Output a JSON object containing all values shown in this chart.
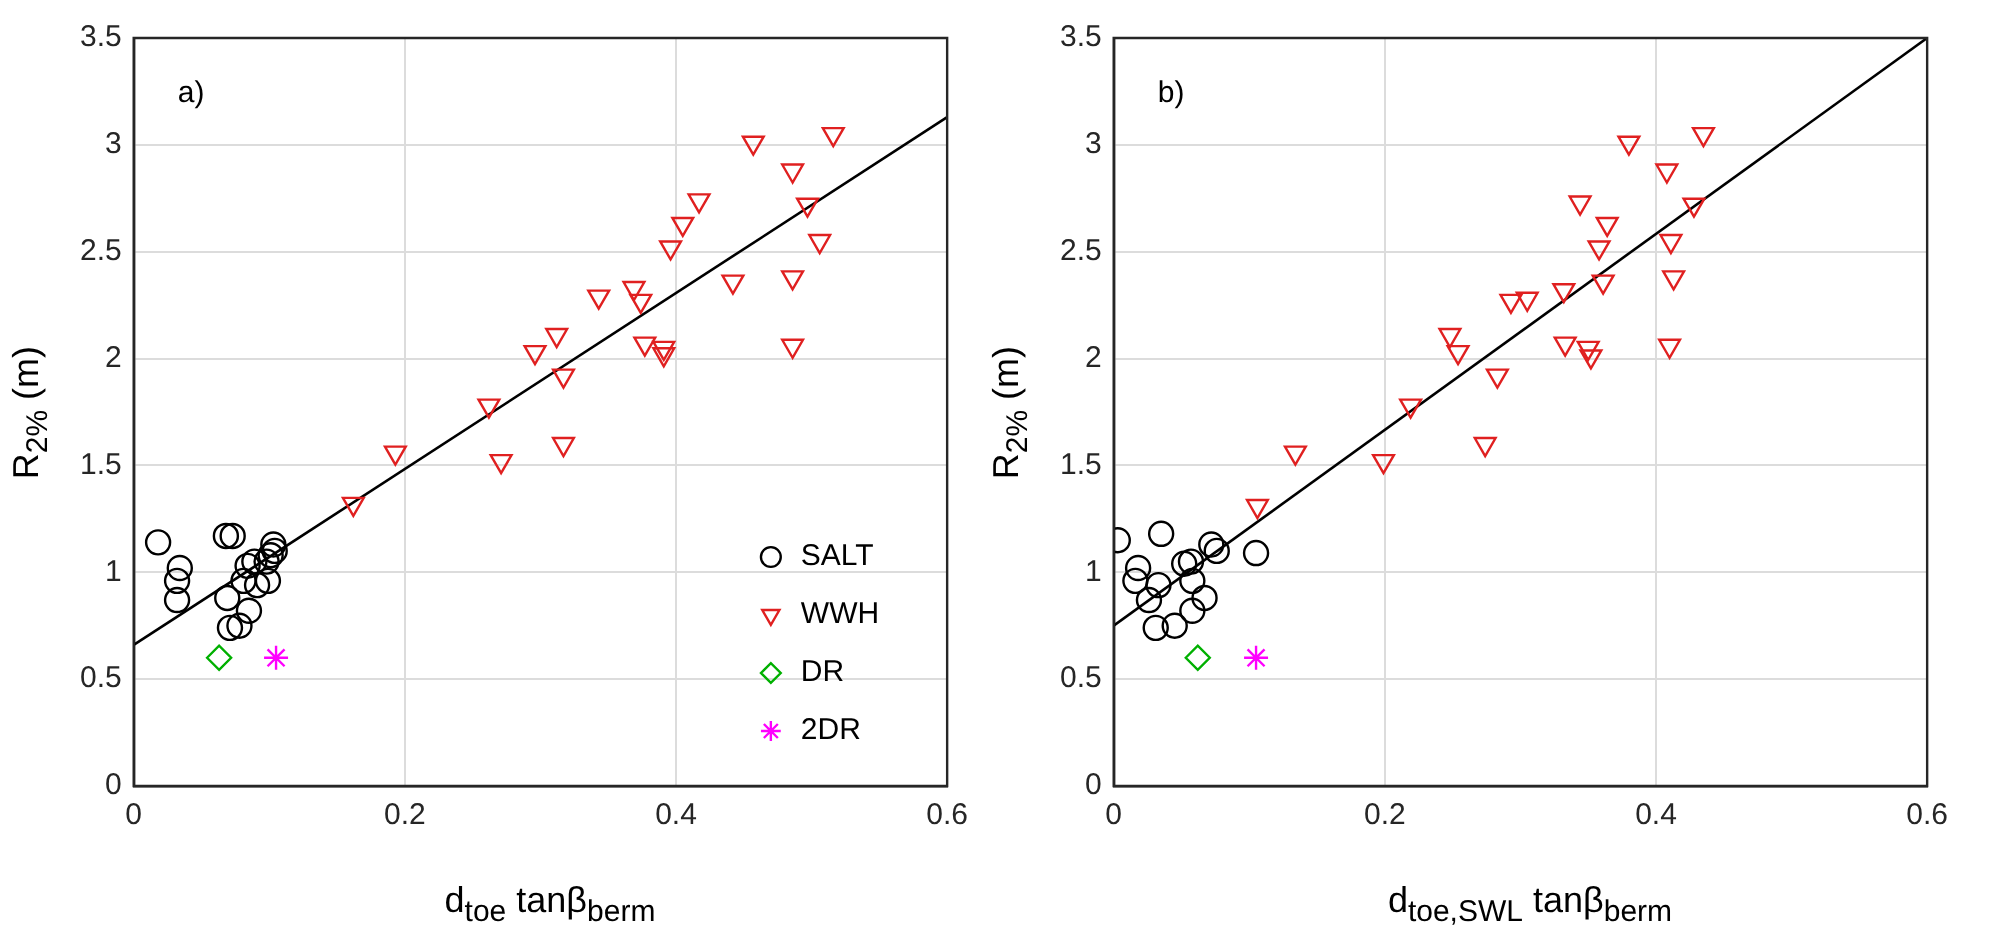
{
  "chart_data": [
    {
      "type": "scatter",
      "xlabel": "d$_{toe}$ tanβ$_{berm}$",
      "ylabel": "R$_{2%}$ (m)",
      "annotations": [
        "a)"
      ],
      "xlim": [
        0,
        0.6
      ],
      "xticks": [
        0,
        0.2,
        0.4,
        0.6
      ],
      "ylim": [
        0,
        3.5
      ],
      "yticks": [
        0,
        0.5,
        1,
        1.5,
        2,
        2.5,
        3,
        3.5
      ],
      "grid": true,
      "legend": "bottom right",
      "series": [
        {
          "name": "SALT",
          "color": "#000000",
          "marker": "circle",
          "x": [
            0.018,
            0.034,
            0.032,
            0.032,
            0.068,
            0.073,
            0.069,
            0.071,
            0.078,
            0.085,
            0.081,
            0.084,
            0.089,
            0.091,
            0.098,
            0.099,
            0.103,
            0.104,
            0.101
          ],
          "values": [
            1.14,
            1.02,
            0.96,
            0.87,
            1.17,
            1.17,
            0.88,
            0.74,
            0.75,
            0.82,
            0.96,
            1.03,
            1.05,
            0.94,
            1.05,
            0.96,
            1.13,
            1.1,
            1.08
          ]
        },
        {
          "name": "WWH",
          "color": "#e02020",
          "marker": "triangle",
          "x": [
            0.162,
            0.193,
            0.271,
            0.262,
            0.317,
            0.296,
            0.312,
            0.317,
            0.343,
            0.369,
            0.374,
            0.377,
            0.391,
            0.391,
            0.396,
            0.405,
            0.417,
            0.442,
            0.457,
            0.486,
            0.486,
            0.486,
            0.497,
            0.506,
            0.516
          ],
          "values": [
            1.32,
            1.56,
            1.52,
            1.78,
            1.6,
            2.03,
            2.11,
            1.92,
            2.29,
            2.33,
            2.27,
            2.07,
            2.05,
            2.02,
            2.52,
            2.63,
            2.74,
            2.36,
            3.01,
            2.88,
            2.38,
            2.06,
            2.72,
            2.55,
            3.05
          ]
        },
        {
          "name": "DR",
          "color": "#00b000",
          "marker": "diamond",
          "x": [
            0.063
          ],
          "values": [
            0.6
          ]
        },
        {
          "name": "2DR",
          "color": "#ff00ff",
          "marker": "cross",
          "x": [
            0.105
          ],
          "values": [
            0.6
          ]
        },
        {
          "type": "line",
          "color": "#000000",
          "marker": "none",
          "x": [
            0,
            0.6
          ],
          "values": [
            0.66,
            3.13
          ]
        }
      ]
    },
    {
      "type": "scatter",
      "xlabel": "d$_{toe,SWL}$ tanβ$_{berm}$",
      "ylabel": "R$_{2%}$ (m)",
      "annotations": [
        "b)"
      ],
      "xlim": [
        0,
        0.6
      ],
      "xticks": [
        0,
        0.2,
        0.4,
        0.6
      ],
      "ylim": [
        0,
        3.5
      ],
      "yticks": [
        0,
        0.5,
        1,
        1.5,
        2,
        2.5,
        3,
        3.5
      ],
      "grid": true,
      "series": [
        {
          "color": "#000000",
          "marker": "circle",
          "x": [
            0.003,
            0.035,
            0.018,
            0.016,
            0.033,
            0.026,
            0.031,
            0.045,
            0.058,
            0.067,
            0.058,
            0.052,
            0.057,
            0.072,
            0.076,
            0.105
          ],
          "values": [
            1.15,
            1.18,
            1.02,
            0.96,
            0.94,
            0.87,
            0.74,
            0.75,
            0.82,
            0.88,
            0.96,
            1.04,
            1.05,
            1.13,
            1.1,
            1.09
          ]
        },
        {
          "color": "#e02020",
          "marker": "triangle",
          "x": [
            0.106,
            0.134,
            0.199,
            0.219,
            0.248,
            0.254,
            0.274,
            0.283,
            0.293,
            0.305,
            0.332,
            0.333,
            0.35,
            0.352,
            0.344,
            0.358,
            0.364,
            0.361,
            0.38,
            0.408,
            0.411,
            0.413,
            0.41,
            0.428,
            0.435
          ],
          "values": [
            1.31,
            1.56,
            1.52,
            1.78,
            2.11,
            2.03,
            1.6,
            1.92,
            2.27,
            2.28,
            2.32,
            2.07,
            2.05,
            2.01,
            2.73,
            2.52,
            2.63,
            2.36,
            3.01,
            2.88,
            2.55,
            2.38,
            2.06,
            2.72,
            3.05
          ]
        },
        {
          "color": "#00b000",
          "marker": "diamond",
          "x": [
            0.062
          ],
          "values": [
            0.6
          ]
        },
        {
          "color": "#ff00ff",
          "marker": "cross",
          "x": [
            0.105
          ],
          "values": [
            0.6
          ]
        },
        {
          "type": "line",
          "color": "#000000",
          "marker": "none",
          "x": [
            0,
            0.6
          ],
          "values": [
            0.75,
            3.5
          ]
        }
      ]
    }
  ]
}
